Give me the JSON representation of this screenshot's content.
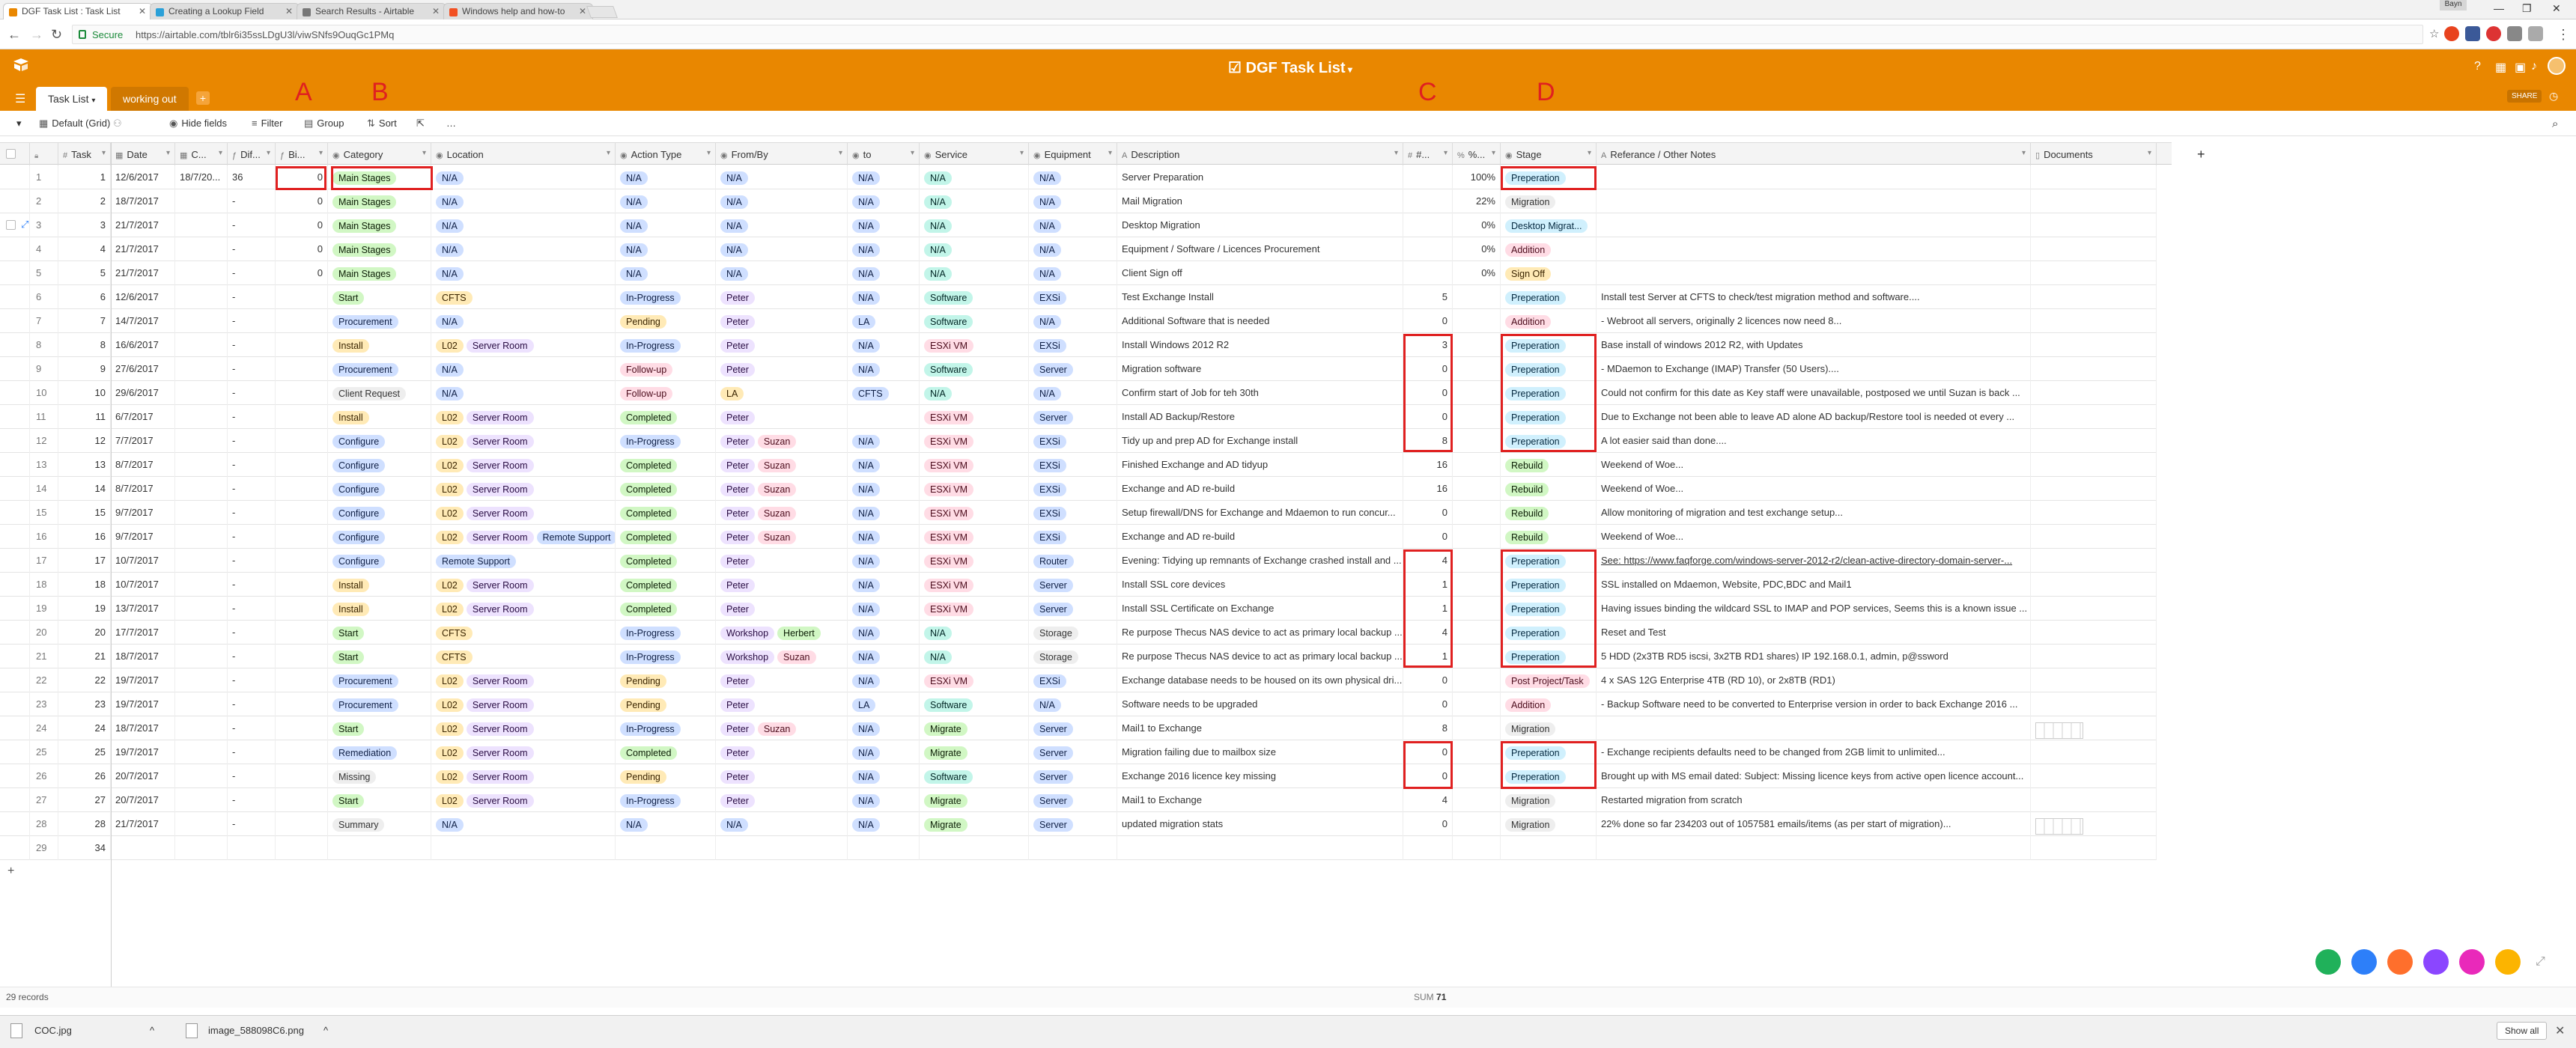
{
  "browser": {
    "tabs": [
      {
        "title": "DGF Task List : Task List"
      },
      {
        "title": "Creating a Lookup Field"
      },
      {
        "title": "Search Results - Airtable"
      },
      {
        "title": "Windows help and how-to"
      }
    ],
    "secure_label": "Secure",
    "url": "https://airtable.com/tblr6i35ssLDgU3l/viwSNfs9OuqGc1PMq",
    "user_chip": "Bayn"
  },
  "app": {
    "base_title": "DGF Task List",
    "tables": [
      "Task List",
      "working out"
    ],
    "share_label": "SHARE",
    "view": {
      "name": "Default (Grid)",
      "hide_fields": "Hide fields",
      "filter": "Filter",
      "group": "Group",
      "sort": "Sort",
      "more": "…"
    }
  },
  "annotations": [
    "A",
    "B",
    "C",
    "D"
  ],
  "columns": [
    "Task",
    "Date",
    "C...",
    "Dif...",
    "Bi...",
    "Category",
    "Location",
    "Action Type",
    "From/By",
    "to",
    "Service",
    "Equipment",
    "Description",
    "#...",
    "%...",
    "Stage",
    "Referance / Other Notes",
    "Documents"
  ],
  "rows": [
    {
      "n": "1",
      "task": "1",
      "date": "12/6/2017",
      "c": "18/7/20...",
      "dif": "36",
      "bi": "0",
      "cat": "Main Stages",
      "loc": [
        {
          "t": "N/A",
          "c": "blue"
        }
      ],
      "act": "N/A",
      "from": "N/A",
      "to": "N/A",
      "svc": "N/A",
      "eq": "N/A",
      "desc": "Server Preparation",
      "hash": "",
      "pct": "100%",
      "stage": "Preperation",
      "notes": ""
    },
    {
      "n": "2",
      "task": "2",
      "date": "18/7/2017",
      "c": "",
      "dif": "-",
      "bi": "0",
      "cat": "Main Stages",
      "loc": [
        {
          "t": "N/A",
          "c": "blue"
        }
      ],
      "act": "N/A",
      "from": "N/A",
      "to": "N/A",
      "svc": "N/A",
      "eq": "N/A",
      "desc": "Mail Migration",
      "hash": "",
      "pct": "22%",
      "stage": "Migration",
      "notes": ""
    },
    {
      "n": "3",
      "task": "3",
      "date": "21/7/2017",
      "c": "",
      "dif": "-",
      "bi": "0",
      "cat": "Main Stages",
      "loc": [
        {
          "t": "N/A",
          "c": "blue"
        }
      ],
      "act": "N/A",
      "from": "N/A",
      "to": "N/A",
      "svc": "N/A",
      "eq": "N/A",
      "desc": "Desktop Migration",
      "hash": "",
      "pct": "0%",
      "stage": "Desktop Migrat...",
      "notes": ""
    },
    {
      "n": "4",
      "task": "4",
      "date": "21/7/2017",
      "c": "",
      "dif": "-",
      "bi": "0",
      "cat": "Main Stages",
      "loc": [
        {
          "t": "N/A",
          "c": "blue"
        }
      ],
      "act": "N/A",
      "from": "N/A",
      "to": "N/A",
      "svc": "N/A",
      "eq": "N/A",
      "desc": "Equipment / Software / Licences Procurement",
      "hash": "",
      "pct": "0%",
      "stage": "Addition",
      "notes": ""
    },
    {
      "n": "5",
      "task": "5",
      "date": "21/7/2017",
      "c": "",
      "dif": "-",
      "bi": "0",
      "cat": "Main Stages",
      "loc": [
        {
          "t": "N/A",
          "c": "blue"
        }
      ],
      "act": "N/A",
      "from": "N/A",
      "to": "N/A",
      "svc": "N/A",
      "eq": "N/A",
      "desc": "Client Sign off",
      "hash": "",
      "pct": "0%",
      "stage": "Sign Off",
      "notes": ""
    },
    {
      "n": "6",
      "task": "6",
      "date": "12/6/2017",
      "c": "",
      "dif": "-",
      "bi": "",
      "cat": "Start",
      "loc": [
        {
          "t": "CFTS",
          "c": "orange"
        }
      ],
      "act": "In-Progress",
      "from": "Peter",
      "to": "N/A",
      "svc": "Software",
      "eq": "EXSi",
      "desc": "Test Exchange Install",
      "hash": "5",
      "pct": "",
      "stage": "Preperation",
      "notes": "Install test Server at CFTS to check/test migration method and software...."
    },
    {
      "n": "7",
      "task": "7",
      "date": "14/7/2017",
      "c": "",
      "dif": "-",
      "bi": "",
      "cat": "Procurement",
      "loc": [
        {
          "t": "N/A",
          "c": "blue"
        }
      ],
      "act": "Pending",
      "from": "Peter",
      "to": "LA",
      "svc": "Software",
      "eq": "N/A",
      "desc": "Additional Software that is needed",
      "hash": "0",
      "pct": "",
      "stage": "Addition",
      "notes": "- Webroot all servers, originally 2 licences now need 8..."
    },
    {
      "n": "8",
      "task": "8",
      "date": "16/6/2017",
      "c": "",
      "dif": "-",
      "bi": "",
      "cat": "Install",
      "loc": [
        {
          "t": "L02",
          "c": "orange"
        },
        {
          "t": "Server Room",
          "c": "purple"
        }
      ],
      "act": "In-Progress",
      "from": "Peter",
      "to": "N/A",
      "svc": "ESXi VM",
      "eq": "EXSi",
      "desc": "Install Windows 2012 R2",
      "hash": "3",
      "pct": "",
      "stage": "Preperation",
      "notes": "Base install of windows 2012 R2, with Updates"
    },
    {
      "n": "9",
      "task": "9",
      "date": "27/6/2017",
      "c": "",
      "dif": "-",
      "bi": "",
      "cat": "Procurement",
      "loc": [
        {
          "t": "N/A",
          "c": "blue"
        }
      ],
      "act": "Follow-up",
      "from": "Peter",
      "to": "N/A",
      "svc": "Software",
      "eq": "Server",
      "desc": "Migration software",
      "hash": "0",
      "pct": "",
      "stage": "Preperation",
      "notes": "- MDaemon to Exchange (IMAP) Transfer (50 Users)...."
    },
    {
      "n": "10",
      "task": "10",
      "date": "29/6/2017",
      "c": "",
      "dif": "-",
      "bi": "",
      "cat": "Client Request",
      "loc": [
        {
          "t": "N/A",
          "c": "blue"
        }
      ],
      "act": "Follow-up",
      "from": "LA",
      "to": "CFTS",
      "svc": "N/A",
      "eq": "N/A",
      "desc": "Confirm start of Job for teh 30th",
      "hash": "0",
      "pct": "",
      "stage": "Preperation",
      "notes": "Could not confirm for this date as Key staff were unavailable, postposed we until Suzan is back ..."
    },
    {
      "n": "11",
      "task": "11",
      "date": "6/7/2017",
      "c": "",
      "dif": "-",
      "bi": "",
      "cat": "Install",
      "loc": [
        {
          "t": "L02",
          "c": "orange"
        },
        {
          "t": "Server Room",
          "c": "purple"
        }
      ],
      "act": "Completed",
      "from": "Peter",
      "to": "",
      "svc": "ESXi VM",
      "eq": "Server",
      "desc": "Install AD Backup/Restore",
      "hash": "0",
      "pct": "",
      "stage": "Preperation",
      "notes": "Due to Exchange not been able to leave AD alone AD backup/Restore tool is needed ot every ..."
    },
    {
      "n": "12",
      "task": "12",
      "date": "7/7/2017",
      "c": "",
      "dif": "-",
      "bi": "",
      "cat": "Configure",
      "loc": [
        {
          "t": "L02",
          "c": "orange"
        },
        {
          "t": "Server Room",
          "c": "purple"
        }
      ],
      "act": "In-Progress",
      "from": "Peter|Suzan",
      "to": "N/A",
      "svc": "ESXi VM",
      "eq": "EXSi",
      "desc": "Tidy up and prep AD for Exchange install",
      "hash": "8",
      "pct": "",
      "stage": "Preperation",
      "notes": "A lot easier said than done...."
    },
    {
      "n": "13",
      "task": "13",
      "date": "8/7/2017",
      "c": "",
      "dif": "-",
      "bi": "",
      "cat": "Configure",
      "loc": [
        {
          "t": "L02",
          "c": "orange"
        },
        {
          "t": "Server Room",
          "c": "purple"
        }
      ],
      "act": "Completed",
      "from": "Peter|Suzan",
      "to": "N/A",
      "svc": "ESXi VM",
      "eq": "EXSi",
      "desc": "Finished Exchange and AD tidyup",
      "hash": "16",
      "pct": "",
      "stage": "Rebuild",
      "notes": "Weekend of Woe..."
    },
    {
      "n": "14",
      "task": "14",
      "date": "8/7/2017",
      "c": "",
      "dif": "-",
      "bi": "",
      "cat": "Configure",
      "loc": [
        {
          "t": "L02",
          "c": "orange"
        },
        {
          "t": "Server Room",
          "c": "purple"
        }
      ],
      "act": "Completed",
      "from": "Peter|Suzan",
      "to": "N/A",
      "svc": "ESXi VM",
      "eq": "EXSi",
      "desc": "Exchange and AD re-build",
      "hash": "16",
      "pct": "",
      "stage": "Rebuild",
      "notes": "Weekend of Woe..."
    },
    {
      "n": "15",
      "task": "15",
      "date": "9/7/2017",
      "c": "",
      "dif": "-",
      "bi": "",
      "cat": "Configure",
      "loc": [
        {
          "t": "L02",
          "c": "orange"
        },
        {
          "t": "Server Room",
          "c": "purple"
        }
      ],
      "act": "Completed",
      "from": "Peter|Suzan",
      "to": "N/A",
      "svc": "ESXi VM",
      "eq": "EXSi",
      "desc": "Setup firewall/DNS for Exchange and Mdaemon to run concur...",
      "hash": "0",
      "pct": "",
      "stage": "Rebuild",
      "notes": "Allow monitoring of  migration and test exchange setup..."
    },
    {
      "n": "16",
      "task": "16",
      "date": "9/7/2017",
      "c": "",
      "dif": "-",
      "bi": "",
      "cat": "Configure",
      "loc": [
        {
          "t": "L02",
          "c": "orange"
        },
        {
          "t": "Server Room",
          "c": "purple"
        },
        {
          "t": "Remote Support",
          "c": "blue"
        }
      ],
      "act": "Completed",
      "from": "Peter|Suzan",
      "to": "N/A",
      "svc": "ESXi VM",
      "eq": "EXSi",
      "desc": "Exchange and AD re-build",
      "hash": "0",
      "pct": "",
      "stage": "Rebuild",
      "notes": "Weekend of Woe..."
    },
    {
      "n": "17",
      "task": "17",
      "date": "10/7/2017",
      "c": "",
      "dif": "-",
      "bi": "",
      "cat": "Configure",
      "loc": [
        {
          "t": "Remote Support",
          "c": "blue"
        }
      ],
      "act": "Completed",
      "from": "Peter",
      "to": "N/A",
      "svc": "ESXi VM",
      "eq": "Router",
      "desc": "Evening: Tidying up remnants of Exchange crashed install and ...",
      "hash": "4",
      "pct": "",
      "stage": "Preperation",
      "notes": "See: https://www.faqforge.com/windows-server-2012-r2/clean-active-directory-domain-server-..."
    },
    {
      "n": "18",
      "task": "18",
      "date": "10/7/2017",
      "c": "",
      "dif": "-",
      "bi": "",
      "cat": "Install",
      "loc": [
        {
          "t": "L02",
          "c": "orange"
        },
        {
          "t": "Server Room",
          "c": "purple"
        }
      ],
      "act": "Completed",
      "from": "Peter",
      "to": "N/A",
      "svc": "ESXi VM",
      "eq": "Server",
      "desc": "Install SSL core devices",
      "hash": "1",
      "pct": "",
      "stage": "Preperation",
      "notes": "SSL installed on Mdaemon, Website, PDC,BDC and Mail1"
    },
    {
      "n": "19",
      "task": "19",
      "date": "13/7/2017",
      "c": "",
      "dif": "-",
      "bi": "",
      "cat": "Install",
      "loc": [
        {
          "t": "L02",
          "c": "orange"
        },
        {
          "t": "Server Room",
          "c": "purple"
        }
      ],
      "act": "Completed",
      "from": "Peter",
      "to": "N/A",
      "svc": "ESXi VM",
      "eq": "Server",
      "desc": "Install SSL Certificate on Exchange",
      "hash": "1",
      "pct": "",
      "stage": "Preperation",
      "notes": "Having issues binding the wildcard SSL to IMAP and POP services, Seems this is a known issue ..."
    },
    {
      "n": "20",
      "task": "20",
      "date": "17/7/2017",
      "c": "",
      "dif": "-",
      "bi": "",
      "cat": "Start",
      "loc": [
        {
          "t": "CFTS",
          "c": "orange"
        }
      ],
      "act": "In-Progress",
      "from": "Workshop|Herbert",
      "to": "N/A",
      "svc": "N/A",
      "eq": "Storage",
      "desc": "Re purpose Thecus NAS device to act as primary local backup ...",
      "hash": "4",
      "pct": "",
      "stage": "Preperation",
      "notes": "Reset and Test"
    },
    {
      "n": "21",
      "task": "21",
      "date": "18/7/2017",
      "c": "",
      "dif": "-",
      "bi": "",
      "cat": "Start",
      "loc": [
        {
          "t": "CFTS",
          "c": "orange"
        }
      ],
      "act": "In-Progress",
      "from": "Workshop|Suzan",
      "to": "N/A",
      "svc": "N/A",
      "eq": "Storage",
      "desc": "Re purpose Thecus NAS device to act as primary local backup ...",
      "hash": "1",
      "pct": "",
      "stage": "Preperation",
      "notes": "5 HDD (2x3TB RD5 iscsi, 3x2TB RD1 shares) IP 192.168.0.1, admin, p@ssword"
    },
    {
      "n": "22",
      "task": "22",
      "date": "19/7/2017",
      "c": "",
      "dif": "-",
      "bi": "",
      "cat": "Procurement",
      "loc": [
        {
          "t": "L02",
          "c": "orange"
        },
        {
          "t": "Server Room",
          "c": "purple"
        }
      ],
      "act": "Pending",
      "from": "Peter",
      "to": "N/A",
      "svc": "ESXi VM",
      "eq": "EXSi",
      "desc": "Exchange database needs to be housed on its own physical dri...",
      "hash": "0",
      "pct": "",
      "stage": "Post Project/Task",
      "notes": "4 x SAS 12G Enterprise 4TB (RD 10), or 2x8TB (RD1)"
    },
    {
      "n": "23",
      "task": "23",
      "date": "19/7/2017",
      "c": "",
      "dif": "-",
      "bi": "",
      "cat": "Procurement",
      "loc": [
        {
          "t": "L02",
          "c": "orange"
        },
        {
          "t": "Server Room",
          "c": "purple"
        }
      ],
      "act": "Pending",
      "from": "Peter",
      "to": "LA",
      "svc": "Software",
      "eq": "N/A",
      "desc": "Software needs to be upgraded",
      "hash": "0",
      "pct": "",
      "stage": "Addition",
      "notes": "- Backup Software need to be converted to Enterprise version in order to back Exchange 2016 ..."
    },
    {
      "n": "24",
      "task": "24",
      "date": "18/7/2017",
      "c": "",
      "dif": "-",
      "bi": "",
      "cat": "Start",
      "loc": [
        {
          "t": "L02",
          "c": "orange"
        },
        {
          "t": "Server Room",
          "c": "purple"
        }
      ],
      "act": "In-Progress",
      "from": "Peter|Suzan",
      "to": "N/A",
      "svc": "Migrate",
      "eq": "Server",
      "desc": "Mail1 to Exchange",
      "hash": "8",
      "pct": "",
      "stage": "Migration",
      "notes": "",
      "thumb": true
    },
    {
      "n": "25",
      "task": "25",
      "date": "19/7/2017",
      "c": "",
      "dif": "-",
      "bi": "",
      "cat": "Remediation",
      "loc": [
        {
          "t": "L02",
          "c": "orange"
        },
        {
          "t": "Server Room",
          "c": "purple"
        }
      ],
      "act": "Completed",
      "from": "Peter",
      "to": "N/A",
      "svc": "Migrate",
      "eq": "Server",
      "desc": "Migration failing due to mailbox size",
      "hash": "0",
      "pct": "",
      "stage": "Preperation",
      "notes": "- Exchange recipients defaults need to be changed from 2GB limit to unlimited..."
    },
    {
      "n": "26",
      "task": "26",
      "date": "20/7/2017",
      "c": "",
      "dif": "-",
      "bi": "",
      "cat": "Missing",
      "loc": [
        {
          "t": "L02",
          "c": "orange"
        },
        {
          "t": "Server Room",
          "c": "purple"
        }
      ],
      "act": "Pending",
      "from": "Peter",
      "to": "N/A",
      "svc": "Software",
      "eq": "Server",
      "desc": "Exchange 2016 licence key missing",
      "hash": "0",
      "pct": "",
      "stage": "Preperation",
      "notes": "Brought up with MS email dated: Subject: Missing licence keys from active open licence account..."
    },
    {
      "n": "27",
      "task": "27",
      "date": "20/7/2017",
      "c": "",
      "dif": "-",
      "bi": "",
      "cat": "Start",
      "loc": [
        {
          "t": "L02",
          "c": "orange"
        },
        {
          "t": "Server Room",
          "c": "purple"
        }
      ],
      "act": "In-Progress",
      "from": "Peter",
      "to": "N/A",
      "svc": "Migrate",
      "eq": "Server",
      "desc": "Mail1 to Exchange",
      "hash": "4",
      "pct": "",
      "stage": "Migration",
      "notes": "Restarted migration from scratch"
    },
    {
      "n": "28",
      "task": "28",
      "date": "21/7/2017",
      "c": "",
      "dif": "-",
      "bi": "",
      "cat": "Summary",
      "loc": [
        {
          "t": "N/A",
          "c": "blue"
        }
      ],
      "act": "N/A",
      "from": "N/A",
      "to": "N/A",
      "svc": "Migrate",
      "eq": "Server",
      "desc": "updated migration stats",
      "hash": "0",
      "pct": "",
      "stage": "Migration",
      "notes": "22% done so far 234203 out of 1057581 emails/items (as per start of migration)...",
      "thumb": true
    },
    {
      "n": "29",
      "task": "34",
      "date": "",
      "c": "",
      "dif": "",
      "bi": "",
      "cat": "",
      "loc": [],
      "act": "",
      "from": "",
      "to": "",
      "svc": "",
      "eq": "",
      "desc": "",
      "hash": "",
      "pct": "",
      "stage": "",
      "notes": ""
    }
  ],
  "footer": {
    "records": "29 records",
    "sum_label": "SUM",
    "sum_value": "71"
  },
  "downloads": [
    {
      "name": "COC.jpg"
    },
    {
      "name": "image_588098C6.png"
    }
  ],
  "show_all": "Show all",
  "colors": {
    "header": "#e98700",
    "annotation": "#e02020"
  }
}
